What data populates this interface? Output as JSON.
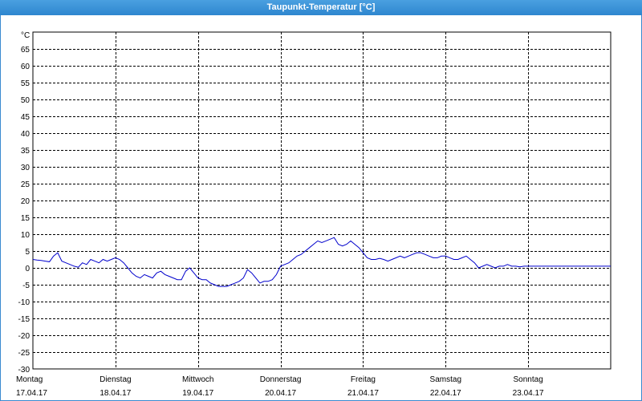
{
  "window": {
    "title": "Taupunkt-Temperatur [°C]",
    "title_bar_color": "#3a8ad0"
  },
  "chart_data": {
    "type": "line",
    "title": "Taupunkt-Temperatur [°C]",
    "ylabel": "°C",
    "xlabel": "",
    "ylim": [
      -30,
      70
    ],
    "yticks": [
      65,
      60,
      55,
      50,
      45,
      40,
      35,
      30,
      25,
      20,
      15,
      10,
      5,
      0,
      -5,
      -10,
      -15,
      -20,
      -25,
      -30
    ],
    "xlim": [
      0,
      7
    ],
    "grid": true,
    "legend": "none",
    "line_color": "#0000cc",
    "days": [
      {
        "weekday": "Montag",
        "date": "17.04.17"
      },
      {
        "weekday": "Dienstag",
        "date": "18.04.17"
      },
      {
        "weekday": "Mittwoch",
        "date": "19.04.17"
      },
      {
        "weekday": "Donnerstag",
        "date": "20.04.17"
      },
      {
        "weekday": "Freitag",
        "date": "21.04.17"
      },
      {
        "weekday": "Samstag",
        "date": "22.04.17"
      },
      {
        "weekday": "Sonntag",
        "date": "23.04.17"
      }
    ],
    "series": [
      {
        "x": [
          0.0,
          0.05,
          0.1,
          0.15,
          0.2,
          0.25,
          0.3,
          0.35,
          0.4,
          0.45,
          0.5,
          0.55,
          0.6,
          0.65,
          0.7,
          0.75,
          0.8,
          0.85,
          0.9,
          0.95,
          1.0,
          1.05,
          1.1,
          1.15,
          1.2,
          1.25,
          1.3,
          1.35,
          1.4,
          1.45,
          1.5,
          1.55,
          1.6,
          1.65,
          1.7,
          1.75,
          1.8,
          1.85,
          1.9,
          1.95,
          2.0,
          2.05,
          2.1,
          2.15,
          2.2,
          2.25,
          2.3,
          2.35,
          2.4,
          2.45,
          2.5,
          2.55,
          2.6,
          2.65,
          2.7,
          2.75,
          2.8,
          2.85,
          2.9,
          2.95,
          3.0,
          3.05,
          3.1,
          3.15,
          3.2,
          3.25,
          3.3,
          3.35,
          3.4,
          3.45,
          3.5,
          3.55,
          3.6,
          3.65,
          3.7,
          3.75,
          3.8,
          3.85,
          3.9,
          3.95,
          4.0,
          4.05,
          4.1,
          4.15,
          4.2,
          4.25,
          4.3,
          4.35,
          4.4,
          4.45,
          4.5,
          4.55,
          4.6,
          4.65,
          4.7,
          4.75,
          4.8,
          4.85,
          4.9,
          4.95,
          5.0,
          5.05,
          5.1,
          5.15,
          5.2,
          5.25,
          5.3,
          5.35,
          5.4,
          5.45,
          5.5,
          5.55,
          5.6,
          5.65,
          5.7,
          5.75,
          5.8,
          5.85,
          5.9,
          5.95,
          6.0,
          6.05,
          6.1,
          6.15,
          6.2,
          6.25,
          6.3,
          6.35,
          6.4,
          6.45,
          6.5,
          6.55,
          6.6,
          6.65,
          6.7,
          6.75,
          6.8,
          6.85,
          6.9,
          6.95,
          7.0
        ],
        "values": [
          2.5,
          2.3,
          2.2,
          2.0,
          1.8,
          3.5,
          4.5,
          2.0,
          1.5,
          1.0,
          0.5,
          0.2,
          1.5,
          1.0,
          2.5,
          2.0,
          1.5,
          2.5,
          2.0,
          2.5,
          3.0,
          2.5,
          1.5,
          0.0,
          -1.5,
          -2.5,
          -3.0,
          -2.0,
          -2.5,
          -3.0,
          -1.5,
          -1.0,
          -2.0,
          -2.5,
          -3.0,
          -3.5,
          -3.5,
          -1.0,
          0.0,
          -1.5,
          -3.0,
          -3.5,
          -3.5,
          -4.5,
          -5.0,
          -5.5,
          -5.5,
          -5.5,
          -5.0,
          -4.5,
          -4.0,
          -3.0,
          -0.5,
          -1.5,
          -3.0,
          -4.5,
          -4.0,
          -4.0,
          -3.5,
          -2.0,
          0.5,
          1.0,
          1.5,
          2.5,
          3.5,
          4.0,
          5.0,
          6.0,
          7.0,
          8.0,
          7.5,
          8.0,
          8.5,
          9.0,
          7.0,
          6.5,
          7.0,
          8.0,
          7.0,
          6.0,
          4.5,
          3.0,
          2.5,
          2.5,
          2.8,
          2.5,
          2.0,
          2.5,
          3.0,
          3.5,
          3.0,
          3.5,
          4.0,
          4.5,
          4.5,
          4.0,
          3.5,
          3.0,
          3.0,
          3.5,
          3.5,
          3.0,
          2.5,
          2.5,
          3.0,
          3.5,
          2.5,
          1.5,
          0.0,
          0.5,
          1.0,
          0.5,
          0.0,
          0.5,
          0.5,
          1.0,
          0.5,
          0.5,
          0.3,
          0.5,
          0.5,
          0.5,
          0.5,
          0.5,
          0.5,
          0.5,
          0.5,
          0.5,
          0.5,
          0.5,
          0.5,
          0.5,
          0.5,
          0.5,
          0.5,
          0.5,
          0.5,
          0.5,
          0.5,
          0.5,
          0.5
        ]
      }
    ]
  }
}
